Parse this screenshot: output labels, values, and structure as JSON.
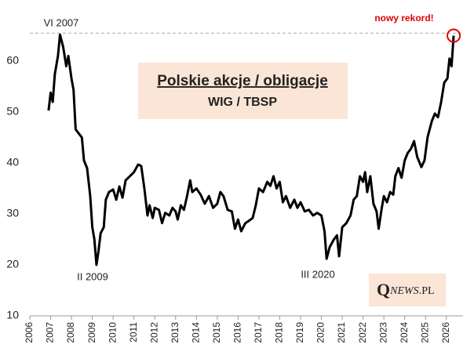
{
  "chart_data": {
    "type": "line",
    "title": "Polskie akcje / obligacje",
    "subtitle": "WIG / TBSP",
    "annotations": [
      "VI 2007",
      "II 2009",
      "III 2020",
      "nowy rekord!"
    ],
    "logo": [
      "Q",
      "NEWS",
      ".PL"
    ],
    "reference_line": 65.5,
    "xlim": [
      2006,
      2026.8
    ],
    "xticks": [
      2006,
      2007,
      2008,
      2009,
      2010,
      2011,
      2012,
      2013,
      2014,
      2015,
      2016,
      2017,
      2018,
      2019,
      2020,
      2021,
      2022,
      2023,
      2024,
      2025,
      2026
    ],
    "ylim": [
      10,
      70
    ],
    "yticks": [
      10,
      20,
      30,
      40,
      50,
      60
    ],
    "series": [
      {
        "color": "#000000",
        "x": [
          2006.9,
          2007.0,
          2007.1,
          2007.2,
          2007.35,
          2007.45,
          2007.6,
          2007.75,
          2007.85,
          2008.0,
          2008.1,
          2008.2,
          2008.35,
          2008.5,
          2008.6,
          2008.75,
          2008.9,
          2009.0,
          2009.1,
          2009.2,
          2009.3,
          2009.4,
          2009.55,
          2009.65,
          2009.8,
          2010.0,
          2010.15,
          2010.3,
          2010.45,
          2010.6,
          2010.8,
          2011.0,
          2011.2,
          2011.35,
          2011.5,
          2011.65,
          2011.75,
          2011.9,
          2012.0,
          2012.2,
          2012.35,
          2012.5,
          2012.7,
          2012.85,
          2013.0,
          2013.1,
          2013.25,
          2013.4,
          2013.55,
          2013.7,
          2013.8,
          2014.0,
          2014.2,
          2014.4,
          2014.6,
          2014.8,
          2015.0,
          2015.15,
          2015.3,
          2015.5,
          2015.7,
          2015.85,
          2016.0,
          2016.15,
          2016.35,
          2016.5,
          2016.7,
          2016.85,
          2017.0,
          2017.2,
          2017.4,
          2017.55,
          2017.7,
          2017.85,
          2018.0,
          2018.15,
          2018.3,
          2018.5,
          2018.7,
          2018.85,
          2019.0,
          2019.2,
          2019.4,
          2019.6,
          2019.8,
          2020.0,
          2020.15,
          2020.25,
          2020.4,
          2020.6,
          2020.75,
          2020.85,
          2021.0,
          2021.2,
          2021.4,
          2021.55,
          2021.7,
          2021.85,
          2022.0,
          2022.1,
          2022.2,
          2022.35,
          2022.5,
          2022.65,
          2022.75,
          2022.9,
          2023.0,
          2023.15,
          2023.3,
          2023.45,
          2023.55,
          2023.7,
          2023.85,
          2024.0,
          2024.15,
          2024.3,
          2024.45,
          2024.6,
          2024.8,
          2024.95,
          2025.1,
          2025.3,
          2025.45,
          2025.6,
          2025.75,
          2025.9,
          2026.05,
          2026.15,
          2026.25,
          2026.35
        ],
        "values": [
          50.3,
          53.8,
          52,
          57.4,
          61,
          65.2,
          62.8,
          59,
          61,
          56.6,
          54.3,
          46.6,
          45.8,
          45,
          40.5,
          39,
          33.5,
          27.4,
          25,
          20,
          22.8,
          26.2,
          27.4,
          32.8,
          34.3,
          34.8,
          32.8,
          35.4,
          33.2,
          36.6,
          37.4,
          38.2,
          39.7,
          39.4,
          35,
          29.7,
          31.7,
          29.2,
          31.2,
          30.8,
          28.2,
          30.2,
          29.7,
          31.2,
          30.5,
          28.9,
          31.7,
          30.8,
          33.5,
          36.6,
          34.3,
          35,
          33.8,
          32,
          33.5,
          31.2,
          32,
          34.3,
          33.5,
          30.8,
          30.5,
          27.1,
          28.9,
          26.6,
          28.2,
          28.6,
          29.2,
          31.7,
          35,
          34.3,
          36.3,
          35.5,
          37.4,
          35,
          36.3,
          32.3,
          33.5,
          31.2,
          32.8,
          31.2,
          32.3,
          30.5,
          30.8,
          29.7,
          30.2,
          29.7,
          26.6,
          21.2,
          23.5,
          25,
          25.8,
          21.7,
          27.4,
          28.2,
          29.7,
          32.8,
          33.5,
          37.4,
          36.3,
          38.2,
          34.3,
          37.4,
          32,
          30.5,
          27.1,
          31.2,
          33.5,
          32.3,
          34.3,
          33.8,
          37.4,
          39,
          37.1,
          40.5,
          42,
          42.8,
          44.3,
          41.2,
          39.2,
          40.5,
          45.1,
          48.2,
          49.7,
          49,
          52,
          55.8,
          56.6,
          60.5,
          59,
          65
        ]
      }
    ]
  }
}
